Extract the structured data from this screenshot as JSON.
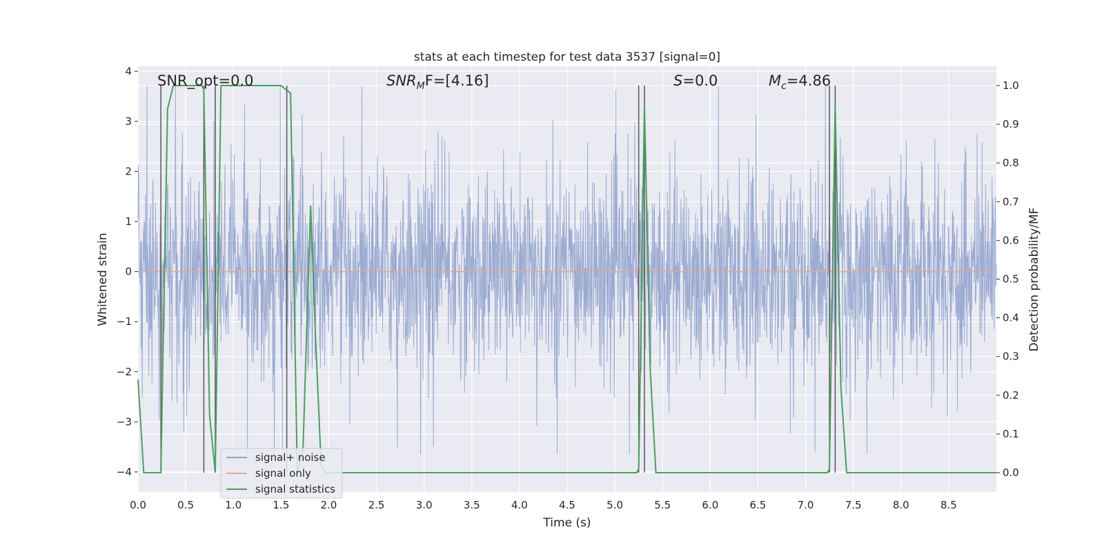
{
  "chart_data": {
    "type": "line",
    "title": "stats at each timestep for test data 3537 [signal=0]",
    "xlabel": "Time (s)",
    "ylabel_left": "Whitened strain",
    "ylabel_right": "Detection probability/MF",
    "xlim": [
      0,
      9.0
    ],
    "ylim_left": [
      -4.4,
      4.1
    ],
    "ylim_right": [
      -0.05,
      1.05
    ],
    "grid": true,
    "legend_position": "lower-left",
    "x_ticks": [
      "0.0",
      "0.5",
      "1.0",
      "1.5",
      "2.0",
      "2.5",
      "3.0",
      "3.5",
      "4.0",
      "4.5",
      "5.0",
      "5.5",
      "6.0",
      "6.5",
      "7.0",
      "7.5",
      "8.0",
      "8.5"
    ],
    "y_ticks_left": [
      "4",
      "3",
      "2",
      "1",
      "0",
      "−1",
      "−2",
      "−3",
      "−4"
    ],
    "y_ticks_right": [
      "1.0",
      "0.9",
      "0.8",
      "0.7",
      "0.6",
      "0.5",
      "0.4",
      "0.3",
      "0.2",
      "0.1",
      "0.0"
    ],
    "annotations": {
      "snr_opt": "SNR_opt=0.0",
      "snr_mf_prefix": "SNR",
      "snr_mf_sub": "M",
      "snr_mf_suffix": "F=[4.16]",
      "s_sym": "S",
      "s_val": "=0.0",
      "mc_sym": "M",
      "mc_sub": "c",
      "mc_val": "=4.86"
    },
    "series": [
      {
        "name": "signal+ noise",
        "color": "#8da0cb",
        "description_values": {
          "typical_range": [
            -1.7,
            1.4
          ],
          "peak_range": [
            -3.6,
            3.7
          ]
        }
      },
      {
        "name": "signal only",
        "color": "#e5a68f",
        "values": [
          [
            0,
            0
          ],
          [
            9.0,
            0
          ]
        ]
      },
      {
        "name": "signal statistics",
        "color": "#4c9e5c",
        "axis": "right",
        "x": [
          0.0,
          0.06,
          0.24,
          0.26,
          0.31,
          0.37,
          0.43,
          0.49,
          0.55,
          0.61,
          0.67,
          0.69,
          0.75,
          0.81,
          0.87,
          0.93,
          1.0,
          1.5,
          1.55,
          1.6,
          1.67,
          1.73,
          1.81,
          1.86,
          1.92,
          1.97,
          2.0,
          5.23,
          5.25,
          5.31,
          5.37,
          5.43,
          7.23,
          7.25,
          7.31,
          7.37,
          7.43,
          9.0
        ],
        "y": [
          0.24,
          0.0,
          0.0,
          0.28,
          0.94,
          1.0,
          1.0,
          1.0,
          1.0,
          1.0,
          1.0,
          0.99,
          0.15,
          0.0,
          1.0,
          1.0,
          1.0,
          1.0,
          0.99,
          0.98,
          0.0,
          0.06,
          0.69,
          0.36,
          0.02,
          0.0,
          0.0,
          0.0,
          0.01,
          0.95,
          0.27,
          0.0,
          0.0,
          0.01,
          0.95,
          0.22,
          0.0,
          0.0
        ]
      }
    ],
    "vertical_markers_x": [
      0.24,
      0.69,
      0.81,
      1.56,
      5.25,
      5.31,
      7.25,
      7.31
    ]
  }
}
